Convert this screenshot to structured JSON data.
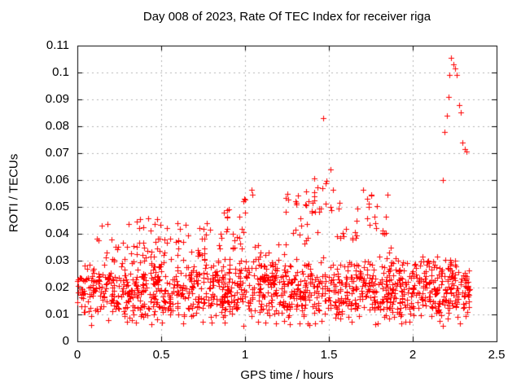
{
  "chart_data": {
    "type": "scatter",
    "title": "Day 008 of 2023, Rate Of TEC Index for receiver riga",
    "xlabel": "GPS time / hours",
    "ylabel": "ROTI / TECUs",
    "xlim": [
      0,
      2.5
    ],
    "ylim": [
      0,
      0.11
    ],
    "xticks": {
      "values": [
        0,
        0.5,
        1,
        1.5,
        2,
        2.5
      ],
      "labels": [
        "0",
        "0.5",
        "1",
        "1.5",
        "2",
        "2.5"
      ]
    },
    "yticks": {
      "values": [
        0,
        0.01,
        0.02,
        0.03,
        0.04,
        0.05,
        0.06,
        0.07,
        0.08,
        0.09,
        0.1,
        0.11
      ],
      "labels": [
        "0",
        "0.01",
        "0.02",
        "0.03",
        "0.04",
        "0.05",
        "0.06",
        "0.07",
        "0.08",
        "0.09",
        "0.1",
        "0.11"
      ]
    },
    "grid": {
      "show": true,
      "color": "#b3b3b3",
      "dash": [
        2,
        4
      ]
    },
    "legend": "none",
    "border_color": "#000000",
    "marker": {
      "shape": "plus",
      "color": "#ff0000",
      "size": 7
    },
    "x_data_range": [
      0,
      2.34
    ],
    "series": [
      {
        "name": "ROTI",
        "seed": 20230108,
        "outlier_points": [
          [
            1.466,
            0.083
          ],
          [
            1.3,
            0.052
          ],
          [
            2.18,
            0.06
          ],
          [
            2.19,
            0.078
          ],
          [
            2.205,
            0.084
          ],
          [
            2.215,
            0.091
          ],
          [
            2.22,
            0.099
          ],
          [
            2.23,
            0.1055
          ],
          [
            2.243,
            0.103
          ],
          [
            2.252,
            0.1015
          ],
          [
            2.262,
            0.099
          ],
          [
            2.275,
            0.088
          ],
          [
            2.287,
            0.085
          ],
          [
            2.298,
            0.074
          ],
          [
            2.31,
            0.0715
          ],
          [
            2.318,
            0.0705
          ]
        ],
        "dense_clusters": [
          {
            "x0": 0.0,
            "x1": 2.34,
            "y0": 0.012,
            "y1": 0.0245,
            "n": 700
          },
          {
            "x0": 0.0,
            "x1": 2.34,
            "y0": 0.009,
            "y1": 0.03,
            "n": 430
          },
          {
            "x0": 0.0,
            "x1": 2.34,
            "y0": 0.0055,
            "y1": 0.012,
            "n": 70
          },
          {
            "x0": 0.0,
            "x1": 2.34,
            "y0": 0.024,
            "y1": 0.0315,
            "n": 130
          },
          {
            "x0": 0.1,
            "x1": 0.21,
            "y0": 0.03,
            "y1": 0.044,
            "n": 8
          },
          {
            "x0": 0.22,
            "x1": 0.3,
            "y0": 0.03,
            "y1": 0.037,
            "n": 5
          },
          {
            "x0": 0.3,
            "x1": 0.55,
            "y0": 0.031,
            "y1": 0.046,
            "n": 32
          },
          {
            "x0": 0.55,
            "x1": 0.8,
            "y0": 0.031,
            "y1": 0.045,
            "n": 26
          },
          {
            "x0": 0.84,
            "x1": 1.0,
            "y0": 0.033,
            "y1": 0.05,
            "n": 24
          },
          {
            "x0": 0.99,
            "x1": 1.05,
            "y0": 0.051,
            "y1": 0.059,
            "n": 5
          },
          {
            "x0": 1.05,
            "x1": 1.25,
            "y0": 0.03,
            "y1": 0.038,
            "n": 10
          },
          {
            "x0": 1.24,
            "x1": 1.44,
            "y0": 0.036,
            "y1": 0.056,
            "n": 26
          },
          {
            "x0": 1.4,
            "x1": 1.53,
            "y0": 0.048,
            "y1": 0.064,
            "n": 15
          },
          {
            "x0": 1.52,
            "x1": 1.68,
            "y0": 0.036,
            "y1": 0.053,
            "n": 14
          },
          {
            "x0": 1.7,
            "x1": 1.85,
            "y0": 0.038,
            "y1": 0.057,
            "n": 18
          },
          {
            "x0": 1.84,
            "x1": 1.93,
            "y0": 0.029,
            "y1": 0.035,
            "n": 6
          },
          {
            "x0": 2.08,
            "x1": 2.26,
            "y0": 0.026,
            "y1": 0.0305,
            "n": 10
          }
        ]
      }
    ]
  }
}
